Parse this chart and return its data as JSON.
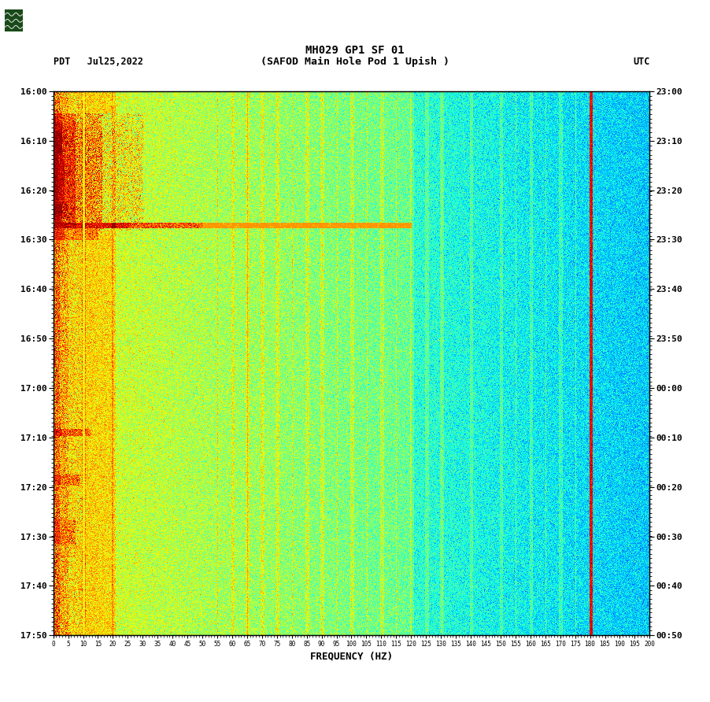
{
  "title_line1": "MH029 GP1 SF 01",
  "title_line2": "(SAFOD Main Hole Pod 1 Upish )",
  "left_label": "PDT   Jul25,2022",
  "right_label": "UTC",
  "xlabel": "FREQUENCY (HZ)",
  "freq_min": 0,
  "freq_max": 200,
  "freq_ticks": [
    0,
    5,
    10,
    15,
    20,
    25,
    30,
    35,
    40,
    45,
    50,
    55,
    60,
    65,
    70,
    75,
    80,
    85,
    90,
    95,
    100,
    105,
    110,
    115,
    120,
    125,
    130,
    135,
    140,
    145,
    150,
    155,
    160,
    165,
    170,
    175,
    180,
    185,
    190,
    195,
    200
  ],
  "time_left_labels": [
    "16:00",
    "16:10",
    "16:20",
    "16:30",
    "16:40",
    "16:50",
    "17:00",
    "17:10",
    "17:20",
    "17:30",
    "17:40",
    "17:50"
  ],
  "time_right_labels": [
    "23:00",
    "23:10",
    "23:20",
    "23:30",
    "23:40",
    "23:50",
    "00:00",
    "00:10",
    "00:20",
    "00:30",
    "00:40",
    "00:50"
  ],
  "n_time_steps": 720,
  "n_freq_steps": 800,
  "background_color": "#ffffff",
  "colormap": "jet",
  "fig_width": 9.02,
  "fig_height": 8.92
}
